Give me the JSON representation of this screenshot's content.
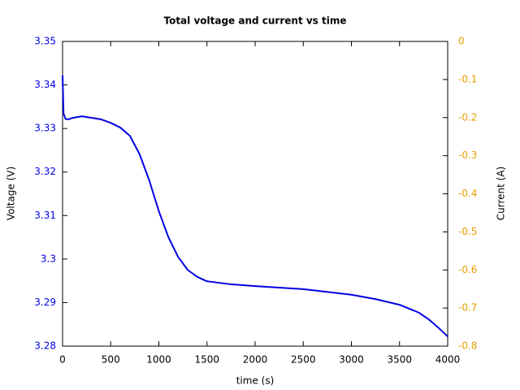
{
  "chart_data": {
    "type": "line",
    "title": "Total voltage and current vs time",
    "x_label": "time (s)",
    "y_label": "Voltage (V)",
    "y2_label": "Current (A)",
    "x": [
      0,
      10,
      30,
      60,
      100,
      200,
      400,
      500,
      600,
      700,
      800,
      900,
      1000,
      1100,
      1200,
      1300,
      1400,
      1500,
      1750,
      2000,
      2500,
      3000,
      3250,
      3500,
      3700,
      3800,
      3900,
      4000
    ],
    "series": [
      {
        "name": "Voltage",
        "color": "#0000e0",
        "axis": "y",
        "values": [
          3.3422,
          3.3335,
          3.3322,
          3.3321,
          3.3324,
          3.3328,
          3.3321,
          3.3313,
          3.3302,
          3.3283,
          3.3241,
          3.3181,
          3.311,
          3.305,
          3.3005,
          3.2975,
          3.2959,
          3.2949,
          3.2942,
          3.2938,
          3.2931,
          3.2918,
          3.2908,
          3.2895,
          3.2877,
          3.2862,
          3.2843,
          3.2822
        ]
      }
    ],
    "xlim": [
      0,
      4000
    ],
    "xticks": [
      0,
      500,
      1000,
      1500,
      2000,
      2500,
      3000,
      3500,
      4000
    ],
    "ylim": [
      3.28,
      3.35
    ],
    "yticks": [
      3.28,
      3.29,
      3.3,
      3.31,
      3.32,
      3.33,
      3.34,
      3.35
    ],
    "y2lim": [
      -0.8,
      0
    ],
    "y2ticks": [
      -0.8,
      -0.7,
      -0.6,
      -0.5,
      -0.4,
      -0.3,
      -0.2,
      -0.1,
      0
    ],
    "y_color": "#0000e0",
    "y2_color": "#e69f00",
    "grid": false
  }
}
